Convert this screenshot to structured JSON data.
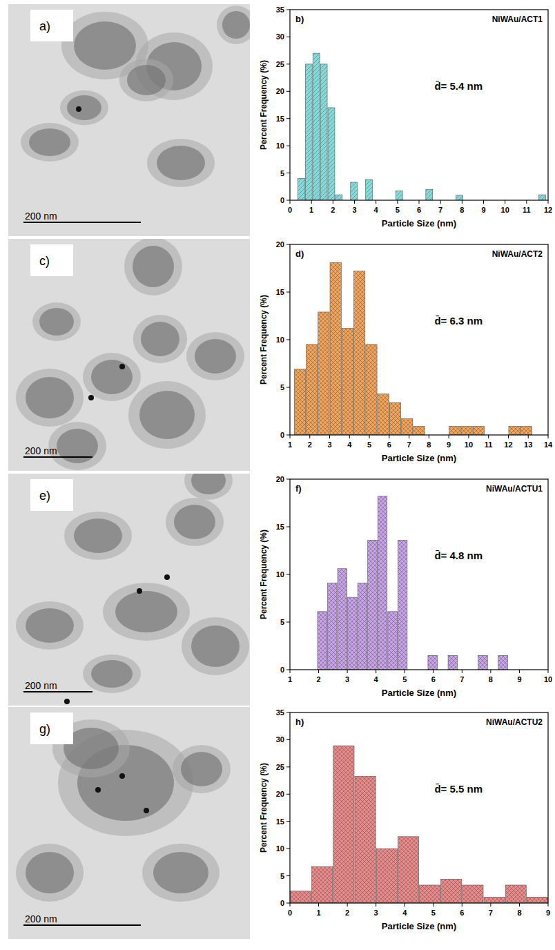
{
  "chart_data": [
    {
      "type": "histogram",
      "title": "NiWAu/ACT1",
      "letter": "b)",
      "annotation": "d̄= 5.4 nm",
      "x_label": "Particle Size (nm)",
      "y_label": "Percent Frequency (%)",
      "color": "#86d9d9",
      "bins": [
        0.35,
        0.7,
        1.05,
        1.4,
        1.75,
        2.1,
        2.45,
        2.8,
        3.15,
        3.5,
        3.85,
        4.2,
        4.55,
        4.9,
        5.25,
        5.6,
        5.95,
        6.3,
        6.65,
        7.0,
        7.35,
        7.7,
        8.05,
        8.4,
        8.75,
        9.1,
        9.45,
        9.8,
        10.15,
        10.5,
        10.85,
        11.2,
        11.55,
        11.9
      ],
      "counts": [
        4,
        25,
        27,
        25,
        17,
        1,
        0,
        3.3,
        0,
        3.8,
        0,
        0,
        0,
        1.7,
        0,
        0,
        0,
        2,
        0,
        0,
        0,
        0.9,
        0,
        0,
        0,
        0,
        0,
        0,
        0,
        0,
        0,
        0,
        1
      ],
      "xlim": [
        0,
        12
      ],
      "xticks": [
        0,
        1,
        2,
        3,
        4,
        5,
        6,
        7,
        8,
        9,
        10,
        11,
        12
      ],
      "ylim": [
        0,
        35
      ],
      "yticks": [
        0,
        5,
        10,
        15,
        20,
        25,
        30,
        35
      ]
    },
    {
      "type": "histogram",
      "title": "NiWAu/ACT2",
      "letter": "d)",
      "annotation": "d̄= 6.3 nm",
      "x_label": "Particle Size (nm)",
      "y_label": "Percent Frequency (%)",
      "color": "#f2a55a",
      "bins": [
        1.2,
        1.8,
        2.4,
        3.0,
        3.6,
        4.2,
        4.8,
        5.4,
        6.0,
        6.6,
        7.2,
        7.8,
        8.4,
        9.0,
        9.6,
        10.2,
        10.8,
        11.4,
        12.0,
        12.6,
        13.2
      ],
      "counts": [
        6.9,
        9.5,
        12.9,
        18.1,
        11.2,
        17.2,
        9.5,
        4.3,
        3.4,
        1.7,
        0.9,
        0,
        0,
        0.9,
        0.9,
        0.9,
        0,
        0,
        0.9,
        0.9
      ],
      "xlim": [
        1,
        14
      ],
      "xticks": [
        1,
        2,
        3,
        4,
        5,
        6,
        7,
        8,
        9,
        10,
        11,
        12,
        13,
        14
      ],
      "ylim": [
        0,
        20
      ],
      "yticks": [
        0,
        5,
        10,
        15,
        20
      ]
    },
    {
      "type": "histogram",
      "title": "NiWAu/ACTU1",
      "letter": "f)",
      "annotation": "d̄= 4.8 nm",
      "x_label": "Particle Size (nm)",
      "y_label": "Percent Frequency (%)",
      "color": "#c9a3ea",
      "bins": [
        1.95,
        2.3,
        2.65,
        3.0,
        3.35,
        3.7,
        4.05,
        4.4,
        4.75,
        5.1,
        5.45,
        5.8,
        6.15,
        6.5,
        6.85,
        7.2,
        7.55,
        7.9,
        8.25,
        8.6
      ],
      "counts": [
        6.1,
        9.1,
        10.6,
        7.6,
        9.1,
        13.6,
        18.2,
        6.1,
        13.6,
        0,
        0,
        1.5,
        0,
        1.5,
        0,
        0,
        1.5,
        0,
        1.5
      ],
      "xlim": [
        1,
        10
      ],
      "xticks": [
        1,
        2,
        3,
        4,
        5,
        6,
        7,
        8,
        9,
        10
      ],
      "ylim": [
        0,
        20
      ],
      "yticks": [
        0,
        5,
        10,
        15,
        20
      ]
    },
    {
      "type": "histogram",
      "title": "NiWAu/ACTU2",
      "letter": "h)",
      "annotation": "d̄= 5.5 nm",
      "x_label": "Particle Size (nm)",
      "y_label": "Percent Frequency (%)",
      "color": "#ea8a8a",
      "bins": [
        0,
        0.75,
        1.5,
        2.25,
        3.0,
        3.75,
        4.5,
        5.25,
        6.0,
        6.75,
        7.5,
        8.25,
        9.0
      ],
      "counts": [
        2.2,
        6.7,
        28.9,
        23.3,
        10,
        12.2,
        3.3,
        4.4,
        3.3,
        1.1,
        3.3,
        1.1
      ],
      "xlim": [
        0,
        9
      ],
      "xticks": [
        0,
        1,
        2,
        3,
        4,
        5,
        6,
        7,
        8,
        9
      ],
      "ylim": [
        0,
        35
      ],
      "yticks": [
        0,
        5,
        10,
        15,
        20,
        25,
        30,
        35
      ]
    }
  ],
  "images": [
    {
      "label": "a)",
      "scale_bar": "200 nm"
    },
    {
      "label": "c)",
      "scale_bar": "200 nm"
    },
    {
      "label": "e)",
      "scale_bar": "200 nm"
    },
    {
      "label": "g)",
      "scale_bar": "200 nm"
    }
  ]
}
